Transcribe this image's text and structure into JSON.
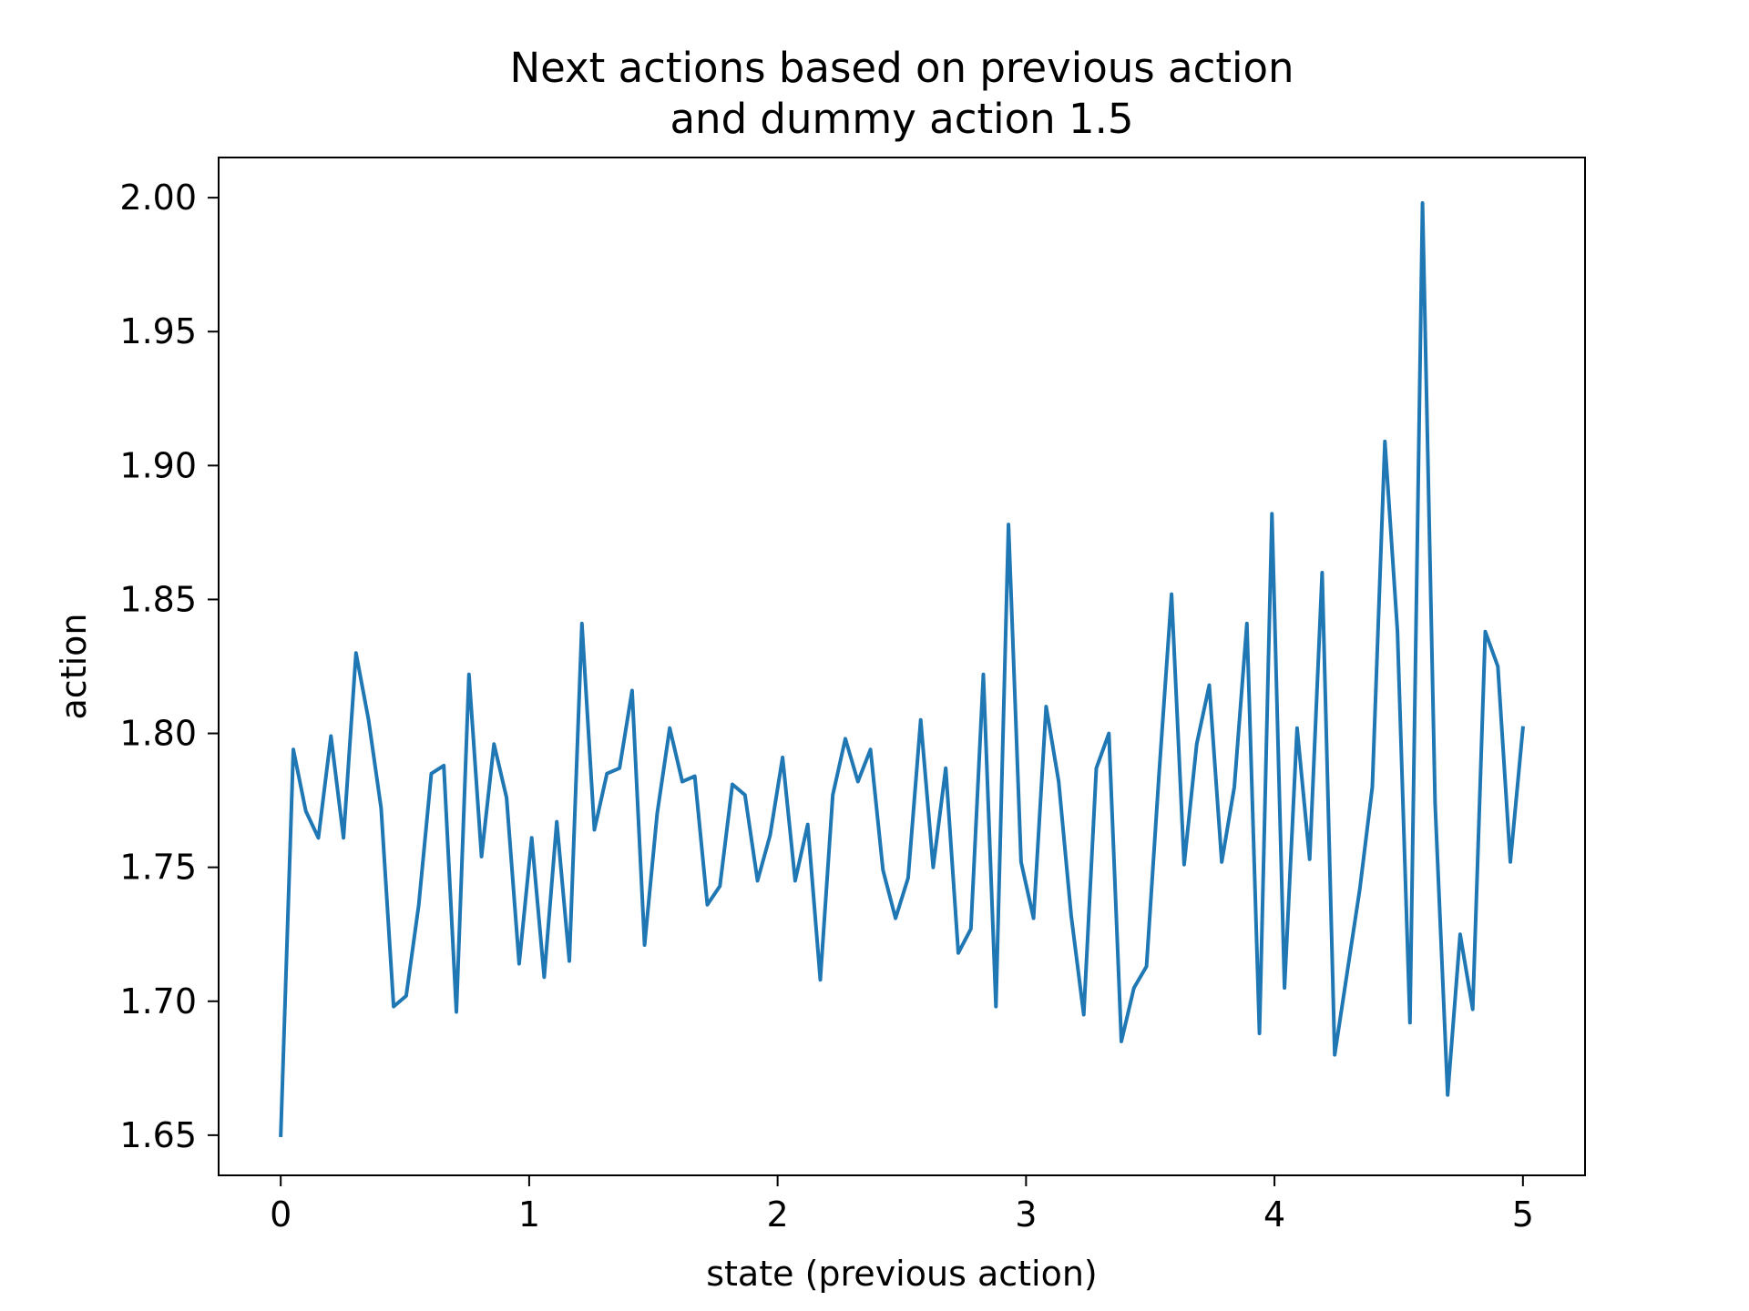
{
  "chart_data": {
    "type": "line",
    "title_line1": "Next actions based on previous action",
    "title_line2": "and dummy action 1.5",
    "xlabel": "state (previous action)",
    "ylabel": "action",
    "xlim": [
      -0.25,
      5.25
    ],
    "ylim": [
      1.635,
      2.015
    ],
    "xticks": [
      0,
      1,
      2,
      3,
      4,
      5
    ],
    "yticks": [
      1.65,
      1.7,
      1.75,
      1.8,
      1.85,
      1.9,
      1.95,
      2.0
    ],
    "line_color": "#1f77b4",
    "grid": false,
    "series": [
      {
        "x_start": 0,
        "x_step": 0.050505,
        "values": [
          1.65,
          1.794,
          1.771,
          1.761,
          1.799,
          1.761,
          1.83,
          1.805,
          1.772,
          1.698,
          1.702,
          1.736,
          1.785,
          1.788,
          1.696,
          1.822,
          1.754,
          1.796,
          1.776,
          1.714,
          1.761,
          1.709,
          1.767,
          1.715,
          1.841,
          1.764,
          1.785,
          1.787,
          1.816,
          1.721,
          1.77,
          1.802,
          1.782,
          1.784,
          1.736,
          1.743,
          1.781,
          1.777,
          1.745,
          1.762,
          1.791,
          1.745,
          1.766,
          1.708,
          1.777,
          1.798,
          1.782,
          1.794,
          1.749,
          1.731,
          1.746,
          1.805,
          1.75,
          1.787,
          1.718,
          1.727,
          1.822,
          1.698,
          1.878,
          1.752,
          1.731,
          1.81,
          1.782,
          1.732,
          1.695,
          1.787,
          1.8,
          1.685,
          1.705,
          1.713,
          1.785,
          1.852,
          1.751,
          1.796,
          1.818,
          1.752,
          1.78,
          1.841,
          1.688,
          1.882,
          1.705,
          1.802,
          1.753,
          1.86,
          1.68,
          1.711,
          1.742,
          1.78,
          1.909,
          1.838,
          1.692,
          1.998,
          1.774,
          1.665,
          1.725,
          1.697,
          1.838,
          1.825,
          1.752,
          1.802
        ]
      }
    ]
  }
}
